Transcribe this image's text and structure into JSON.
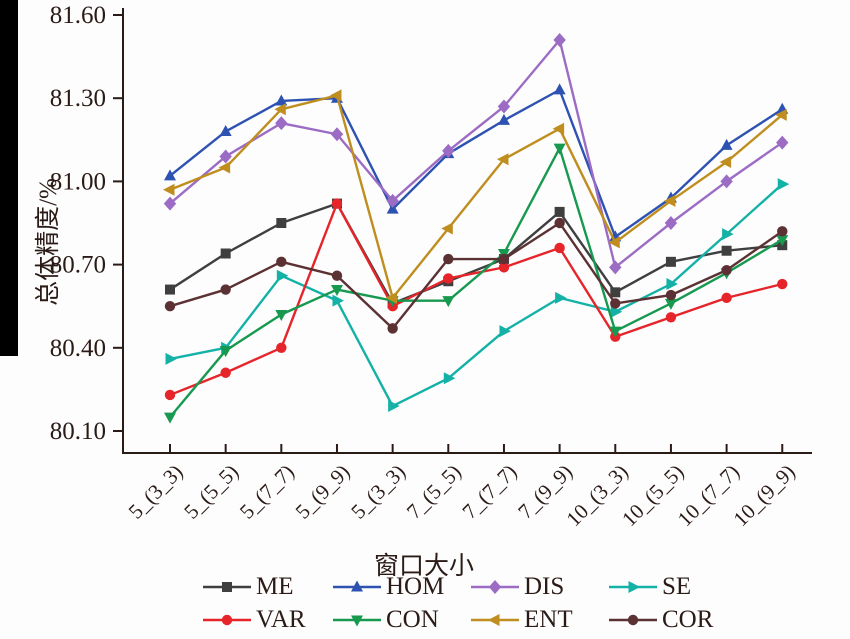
{
  "figure": {
    "background": "#fdfdfd",
    "ink_color": "#2b1b17",
    "left_black_bar_color": "#000000"
  },
  "chart_data": {
    "type": "line",
    "title": "",
    "xlabel": "窗口大小",
    "ylabel": "总体精度/%",
    "categories": [
      "5_(3_3)",
      "5_(5_5)",
      "5_(7_7)",
      "5_(9_9)",
      "5_(3_3)",
      "7_(5_5)",
      "7_(7_7)",
      "7_(9_9)",
      "10_(3_3)",
      "10_(5_5)",
      "10_(7_7)",
      "10_(9_9)"
    ],
    "y_ticks": [
      "81.60",
      "81.30",
      "81.00",
      "80.70",
      "80.40",
      "80.10"
    ],
    "ylim": [
      80.02,
      81.6
    ],
    "grid": false,
    "legend_position": "bottom",
    "legend_rows": [
      [
        "ME",
        "HOM",
        "DIS",
        "SE"
      ],
      [
        "VAR",
        "CON",
        "ENT",
        "COR"
      ]
    ],
    "series": [
      {
        "name": "ME",
        "color": "#3f3f3f",
        "marker": "square",
        "values": [
          80.61,
          80.74,
          80.85,
          80.92,
          80.56,
          80.64,
          80.72,
          80.89,
          80.6,
          80.71,
          80.75,
          80.77
        ]
      },
      {
        "name": "HOM",
        "color": "#2e52b2",
        "marker": "triangle-up",
        "values": [
          81.02,
          81.18,
          81.29,
          81.3,
          80.9,
          81.1,
          81.22,
          81.33,
          80.8,
          80.94,
          81.13,
          81.26
        ]
      },
      {
        "name": "DIS",
        "color": "#9c6cc5",
        "marker": "diamond",
        "values": [
          80.92,
          81.09,
          81.21,
          81.17,
          80.93,
          81.11,
          81.27,
          81.51,
          80.69,
          80.85,
          81.0,
          81.14
        ]
      },
      {
        "name": "SE",
        "color": "#14b1a7",
        "marker": "triangle-right",
        "values": [
          80.36,
          80.4,
          80.66,
          80.57,
          80.19,
          80.29,
          80.46,
          80.58,
          80.53,
          80.63,
          80.81,
          80.99
        ]
      },
      {
        "name": "VAR",
        "color": "#e6252b",
        "marker": "circle",
        "values": [
          80.23,
          80.31,
          80.4,
          80.92,
          80.55,
          80.65,
          80.69,
          80.76,
          80.44,
          80.51,
          80.58,
          80.63
        ]
      },
      {
        "name": "CON",
        "color": "#17994f",
        "marker": "triangle-down",
        "values": [
          80.15,
          80.39,
          80.52,
          80.61,
          80.57,
          80.57,
          80.74,
          81.12,
          80.46,
          80.56,
          80.67,
          80.79
        ]
      },
      {
        "name": "ENT",
        "color": "#bf8e1f",
        "marker": "triangle-left",
        "values": [
          80.97,
          81.05,
          81.26,
          81.31,
          80.58,
          80.83,
          81.08,
          81.19,
          80.78,
          80.93,
          81.07,
          81.24
        ]
      },
      {
        "name": "COR",
        "color": "#5c3134",
        "marker": "circle",
        "values": [
          80.55,
          80.61,
          80.71,
          80.66,
          80.47,
          80.72,
          80.72,
          80.85,
          80.56,
          80.59,
          80.68,
          80.82
        ]
      }
    ]
  }
}
